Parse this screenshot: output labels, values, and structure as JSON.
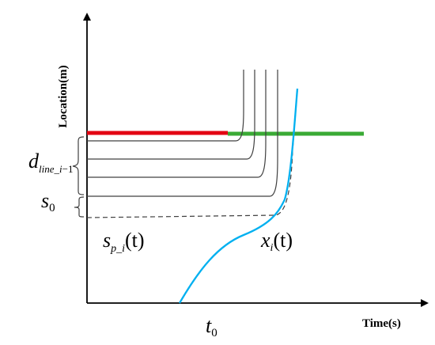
{
  "axes": {
    "y_label": "Location(m)",
    "x_label": "Time(s)"
  },
  "labels": {
    "d_line_main": "d",
    "d_line_sub": "line_i",
    "d_line_suffix": "−1",
    "s0_main": "s",
    "s0_sub": "0",
    "t0_main": "t",
    "t0_sub": "0",
    "sp_main": "s",
    "sp_sub": "p_i",
    "sp_arg": "(t)",
    "xi_main": "x",
    "xi_sub": "i",
    "xi_arg": "(t)"
  },
  "colors": {
    "signal_red": "#e30613",
    "signal_green": "#3aaa35",
    "ego_trajectory": "#00b0f0",
    "platoon_lines": "#404040",
    "axis": "#000000"
  }
}
